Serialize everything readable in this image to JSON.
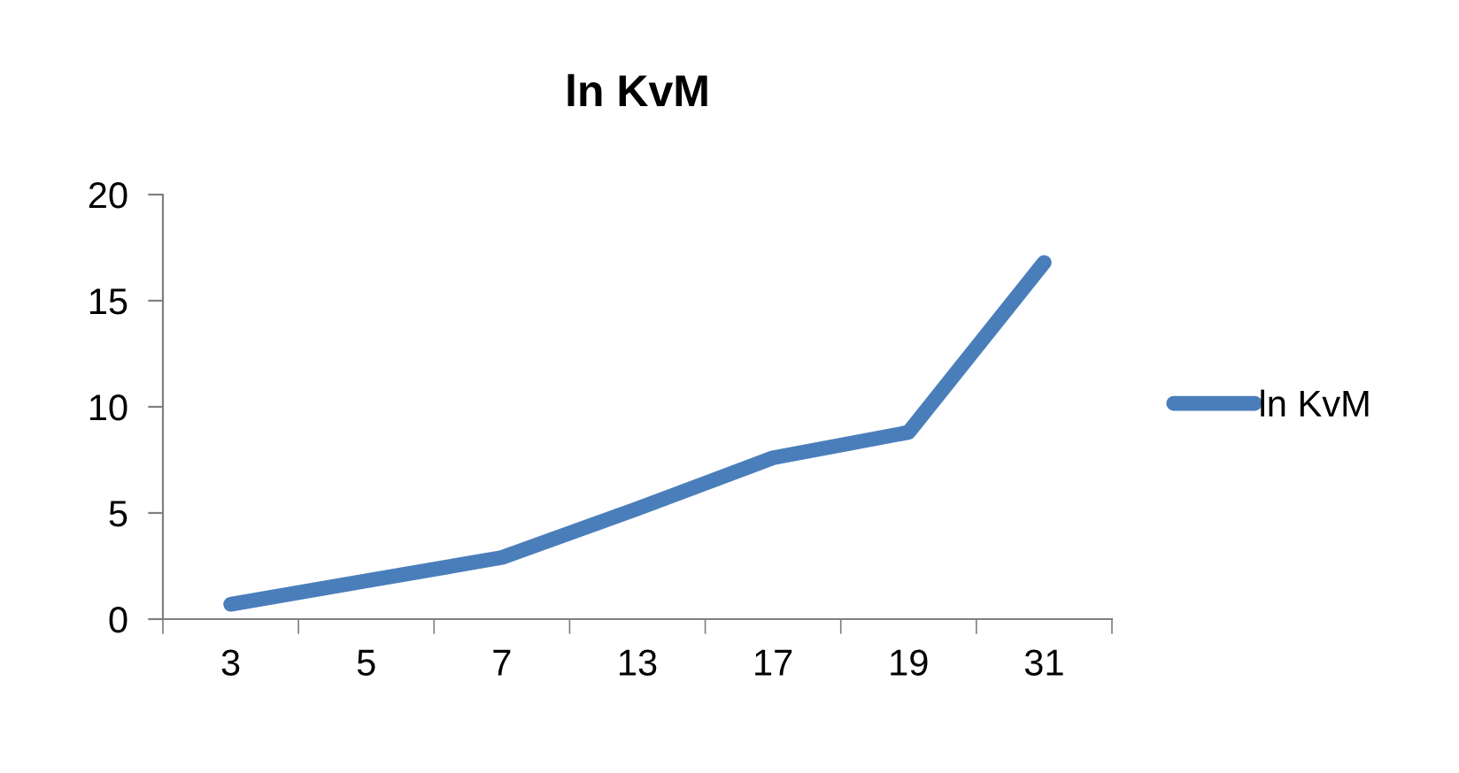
{
  "chart_data": {
    "type": "line",
    "title": "ln KvM",
    "categories": [
      "3",
      "5",
      "7",
      "13",
      "17",
      "19",
      "31"
    ],
    "series": [
      {
        "name": "ln KvM",
        "color": "#4a7ebb",
        "values": [
          0.7,
          1.8,
          2.9,
          5.2,
          7.6,
          8.8,
          16.8
        ]
      }
    ],
    "ylim": [
      0,
      20
    ],
    "yticks": [
      0,
      5,
      10,
      15,
      20
    ],
    "grid": false,
    "legend": "right",
    "marker": "none",
    "line_style": "solid"
  }
}
